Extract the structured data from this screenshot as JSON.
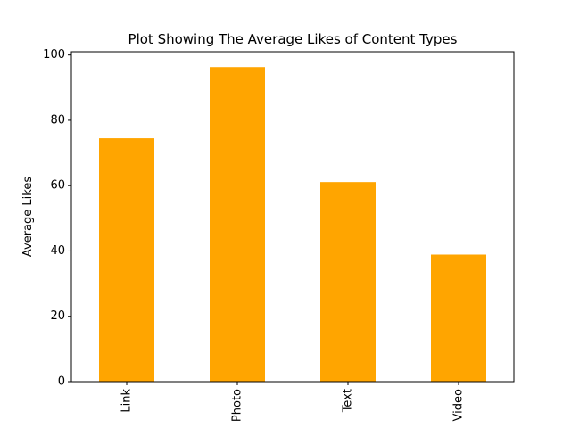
{
  "chart_data": {
    "type": "bar",
    "title": "Plot Showing The Average Likes of Content Types",
    "xlabel": "",
    "ylabel": "Average Likes",
    "categories": [
      "Link",
      "Photo",
      "Text",
      "Video"
    ],
    "values": [
      74.5,
      96.3,
      61.1,
      38.9
    ],
    "ylim": [
      0,
      101
    ],
    "yticks": [
      0,
      20,
      40,
      60,
      80,
      100
    ],
    "bar_color": "#FFA500",
    "grid": false,
    "legend": "none",
    "xtick_rotation": "vertical"
  }
}
